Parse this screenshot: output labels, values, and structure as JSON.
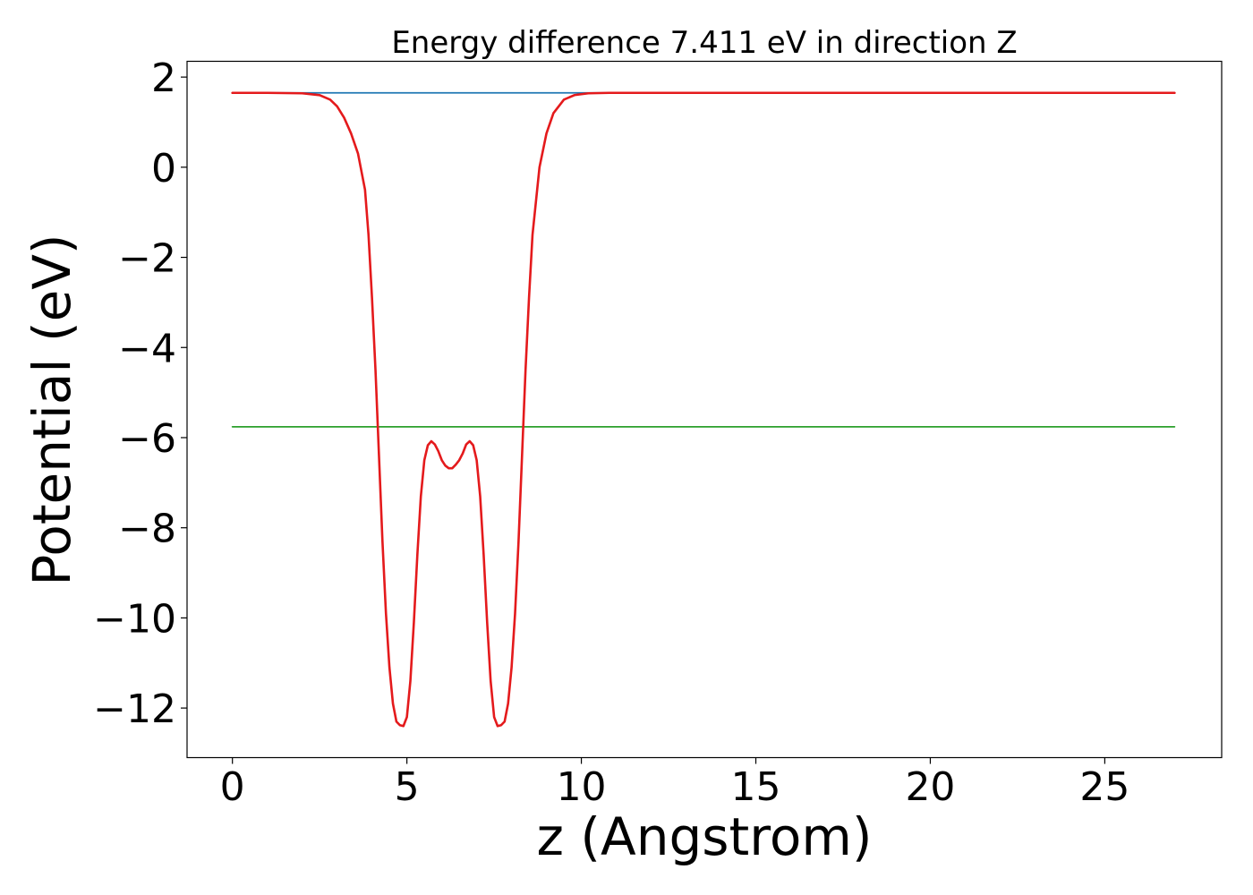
{
  "chart_data": {
    "type": "line",
    "title": "Energy difference 7.411 eV in direction Z",
    "xlabel": "z (Angstrom)",
    "ylabel": "Potential (eV)",
    "xlim": [
      -1.3,
      28.35
    ],
    "ylim": [
      -13.1,
      2.35
    ],
    "xticks": [
      0,
      5,
      10,
      15,
      20,
      25
    ],
    "xtick_labels": [
      "0",
      "5",
      "10",
      "15",
      "20",
      "25"
    ],
    "yticks": [
      2,
      0,
      -2,
      -4,
      -6,
      -8,
      -10,
      -12
    ],
    "ytick_labels": [
      "2",
      "0",
      "−2",
      "−4",
      "−6",
      "−8",
      "−10",
      "−12"
    ],
    "grid": false,
    "legend": "none",
    "series": [
      {
        "color": "#1f77b4",
        "x": [
          0,
          27
        ],
        "y": [
          1.65,
          1.65
        ]
      },
      {
        "color": "#2ca02c",
        "x": [
          0,
          27
        ],
        "y": [
          -5.76,
          -5.76
        ]
      },
      {
        "color": "#e41a1c",
        "x": [
          0.0,
          1.0,
          2.0,
          2.5,
          2.8,
          3.0,
          3.2,
          3.4,
          3.6,
          3.8,
          3.9,
          4.0,
          4.1,
          4.2,
          4.3,
          4.4,
          4.5,
          4.6,
          4.7,
          4.8,
          4.9,
          5.0,
          5.1,
          5.2,
          5.3,
          5.4,
          5.5,
          5.6,
          5.7,
          5.8,
          5.9,
          6.0,
          6.1,
          6.2,
          6.3,
          6.4,
          6.5,
          6.6,
          6.7,
          6.8,
          6.9,
          7.0,
          7.1,
          7.2,
          7.3,
          7.4,
          7.5,
          7.6,
          7.7,
          7.8,
          7.9,
          8.0,
          8.1,
          8.2,
          8.3,
          8.4,
          8.5,
          8.6,
          8.8,
          9.0,
          9.2,
          9.5,
          9.8,
          10.2,
          10.8,
          12.0,
          15.0,
          20.0,
          27.0
        ],
        "y": [
          1.65,
          1.65,
          1.64,
          1.6,
          1.5,
          1.35,
          1.1,
          0.75,
          0.3,
          -0.5,
          -1.5,
          -2.9,
          -4.5,
          -6.4,
          -8.3,
          -9.9,
          -11.1,
          -11.9,
          -12.3,
          -12.38,
          -12.4,
          -12.2,
          -11.4,
          -10.1,
          -8.6,
          -7.3,
          -6.5,
          -6.17,
          -6.08,
          -6.15,
          -6.3,
          -6.5,
          -6.62,
          -6.68,
          -6.68,
          -6.6,
          -6.5,
          -6.35,
          -6.15,
          -6.08,
          -6.17,
          -6.5,
          -7.3,
          -8.6,
          -10.1,
          -11.4,
          -12.2,
          -12.4,
          -12.38,
          -12.3,
          -11.9,
          -11.1,
          -9.9,
          -8.3,
          -6.4,
          -4.5,
          -2.9,
          -1.5,
          0.0,
          0.75,
          1.2,
          1.5,
          1.6,
          1.64,
          1.65,
          1.65,
          1.65,
          1.65,
          1.65
        ]
      }
    ]
  }
}
